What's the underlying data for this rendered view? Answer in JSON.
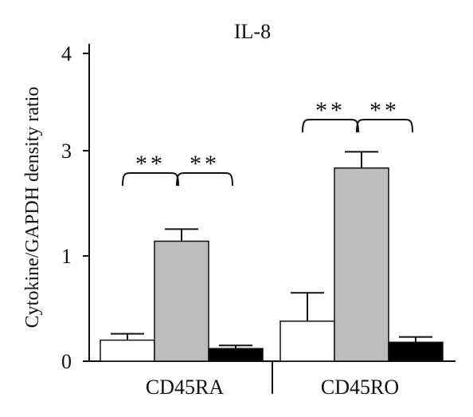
{
  "chart_data": {
    "type": "bar",
    "title": "IL-8",
    "ylabel": "Cytokine/GAPDH density ratio",
    "xlabel": "",
    "categories": [
      "CD45RA",
      "CD45RO"
    ],
    "y_tick_labels": [
      "0",
      "1",
      "3",
      "4"
    ],
    "y_axis_note": "broken scale between 1 and 3",
    "series": [
      {
        "values": [
          0.2,
          0.38
        ],
        "errors": [
          0.06,
          0.27
        ],
        "color": "#ffffff"
      },
      {
        "values": [
          1.28,
          2.67
        ],
        "errors": [
          0.23,
          0.31
        ],
        "color": "#bdbdbd"
      },
      {
        "values": [
          0.12,
          0.18
        ],
        "errors": [
          0.03,
          0.05
        ],
        "color": "#000000"
      }
    ],
    "significance": [
      {
        "category": "CD45RA",
        "between": [
          0,
          1
        ],
        "label": "**"
      },
      {
        "category": "CD45RA",
        "between": [
          1,
          2
        ],
        "label": "**"
      },
      {
        "category": "CD45RO",
        "between": [
          0,
          1
        ],
        "label": "**"
      },
      {
        "category": "CD45RO",
        "between": [
          1,
          2
        ],
        "label": "**"
      }
    ],
    "grid": false,
    "legend": "none"
  }
}
